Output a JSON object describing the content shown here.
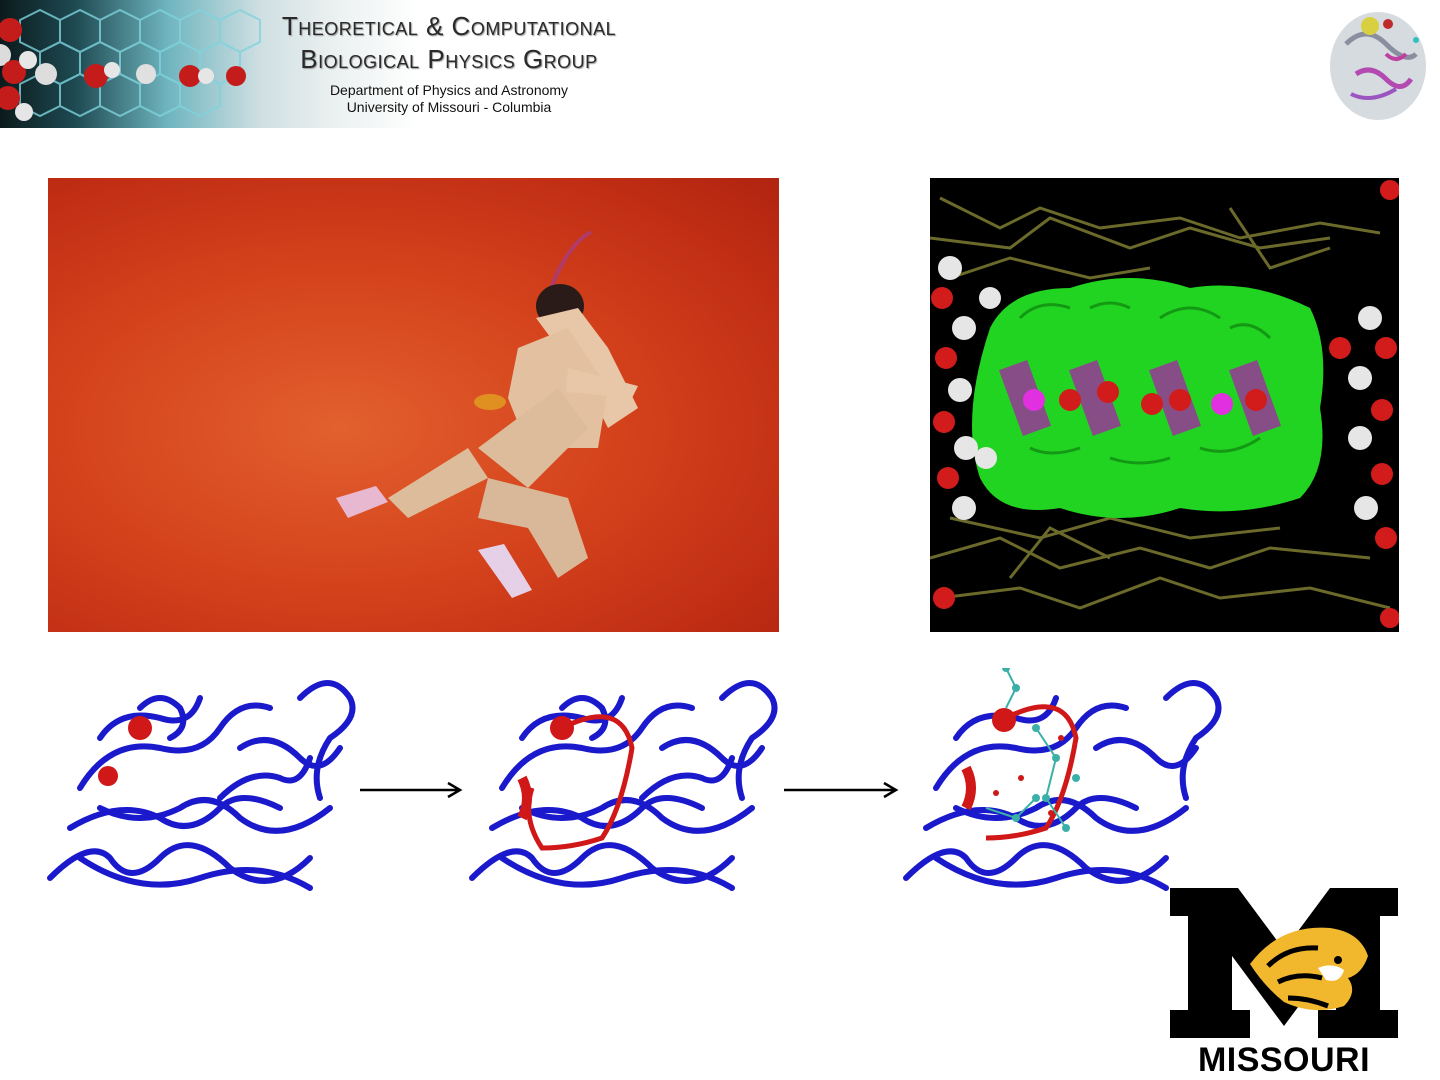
{
  "header": {
    "title_line1": "Theoretical & Computational",
    "title_line2": "Biological Physics Group",
    "department": "Department of Physics and Astronomy",
    "university": "University of Missouri - Columbia"
  },
  "figures": {
    "kungfu_photo": "martial-arts-jump-photo",
    "channel_render": "membrane-channel-water-molecules",
    "protein_frames": [
      "protein-state-1",
      "protein-state-2",
      "protein-state-3"
    ]
  },
  "logo": {
    "wordmark": "MISSOURI",
    "colors": {
      "black": "#000000",
      "gold": "#f1b82d"
    }
  },
  "colors": {
    "ribbon_blue": "#1a1acc",
    "highlight_red": "#d01818",
    "channel_green": "#22d422",
    "lattice_olive": "#6b6a2a"
  }
}
